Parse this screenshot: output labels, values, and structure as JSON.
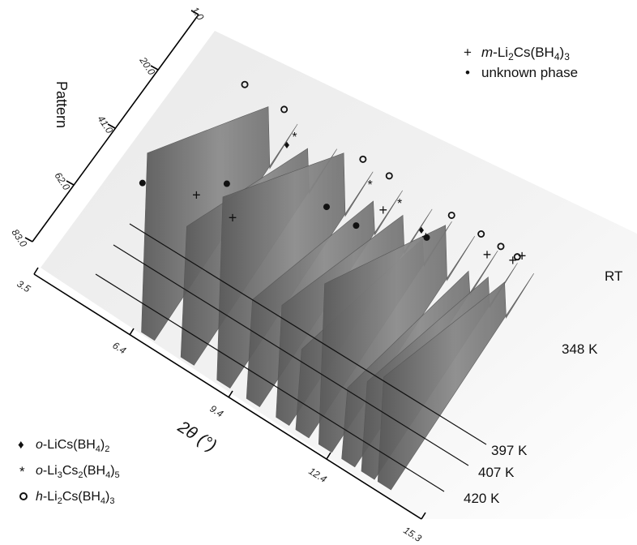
{
  "chart_data": {
    "type": "area",
    "pattern_axis": {
      "label": "Pattern",
      "ticks": [
        "1.0",
        "20.0",
        "41.0",
        "62.0",
        "83.0"
      ]
    },
    "twotheta_axis": {
      "label": "2θ (°)",
      "ticks": [
        "3.5",
        "6.4",
        "9.4",
        "12.4",
        "15.3"
      ],
      "range": [
        3.5,
        15.3
      ]
    },
    "temperature_labels": [
      "RT",
      "348 K",
      "397 K",
      "407 K",
      "420 K"
    ],
    "legend_top": [
      {
        "symbol": "+",
        "name": "m-Li2Cs(BH4)3"
      },
      {
        "symbol": "•",
        "name": "unknown phase"
      }
    ],
    "legend_bottom": [
      {
        "symbol": "♦",
        "name": "o-LiCs(BH4)2"
      },
      {
        "symbol": "*",
        "name": "o-Li3Cs2(BH4)5"
      },
      {
        "symbol": "o",
        "name": "h-Li2Cs(BH4)3"
      }
    ],
    "peaks_2theta": [
      6.8,
      8.0,
      9.1,
      10.0,
      10.9,
      11.5,
      12.2,
      12.9,
      13.5,
      14.0
    ],
    "peak_heights": [
      0.98,
      0.72,
      1.0,
      0.55,
      0.62,
      0.45,
      0.88,
      0.4,
      0.5,
      0.58
    ],
    "markers": {
      "plus": [
        [
          8.0,
          1
        ],
        [
          9.1,
          1
        ],
        [
          10.9,
          60
        ],
        [
          12.2,
          60
        ],
        [
          13.5,
          72
        ],
        [
          14.0,
          78
        ],
        [
          14.0,
          84
        ]
      ],
      "dot": [
        [
          6.8,
          1
        ],
        [
          8.0,
          30
        ],
        [
          10.0,
          52
        ],
        [
          10.9,
          52
        ],
        [
          12.2,
          70
        ]
      ],
      "diamond": [
        [
          6.8,
          91
        ],
        [
          10.9,
          91
        ]
      ],
      "star": [
        [
          6.8,
          96
        ],
        [
          9.1,
          96
        ],
        [
          10.0,
          96
        ]
      ],
      "circle": [
        [
          5.0,
          102
        ],
        [
          6.2,
          102
        ],
        [
          8.6,
          102
        ],
        [
          9.4,
          102
        ],
        [
          11.3,
          102
        ],
        [
          12.2,
          102
        ],
        [
          12.8,
          102
        ],
        [
          13.3,
          102
        ]
      ]
    }
  }
}
